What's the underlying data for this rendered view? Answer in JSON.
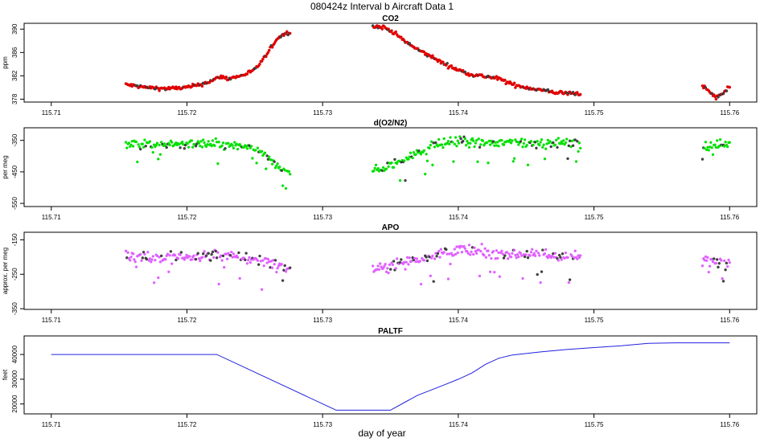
{
  "figure": {
    "title": "080424z   Interval b Aircraft Data 1",
    "xlabel": "day of year"
  },
  "chart_data": [
    {
      "type": "scatter",
      "title": "CO2",
      "ylabel": "ppm",
      "xlim": [
        115.708,
        115.762
      ],
      "ylim": [
        377.5,
        391.0
      ],
      "yticks": [
        378,
        382,
        386,
        390
      ],
      "xticks": [
        115.71,
        115.72,
        115.73,
        115.74,
        115.75,
        115.76
      ],
      "color": "#e00000",
      "series": [
        {
          "segments": [
            {
              "x": [
                115.7155,
                115.717,
                115.7185,
                115.72,
                115.721,
                115.722,
                115.7225,
                115.723,
                115.724,
                115.725,
                115.7255,
                115.726,
                115.7265,
                115.727,
                115.7276
              ],
              "y": [
                380.5,
                380.0,
                379.8,
                380.0,
                380.5,
                381.3,
                381.9,
                381.5,
                382.0,
                383.0,
                384.5,
                386.0,
                388.0,
                389.0,
                389.5
              ]
            },
            {
              "x": [
                115.7337,
                115.7345,
                115.735,
                115.7355,
                115.736,
                115.737,
                115.738,
                115.739,
                115.74,
                115.741,
                115.742,
                115.743,
                115.744,
                115.745,
                115.746,
                115.747,
                115.748,
                115.749
              ],
              "y": [
                390.5,
                390.3,
                389.8,
                389.0,
                388.0,
                386.5,
                385.3,
                384.0,
                383.0,
                382.2,
                381.9,
                381.5,
                380.5,
                380.0,
                379.6,
                379.2,
                379.0,
                379.0
              ]
            },
            {
              "x": [
                115.758,
                115.7585,
                115.759,
                115.7595,
                115.76
              ],
              "y": [
                380.2,
                379.3,
                378.2,
                379.0,
                380.2
              ]
            }
          ],
          "noise": 0.3
        }
      ]
    },
    {
      "type": "scatter",
      "title": "d(O2/N2)",
      "ylabel": "per meg",
      "xlim": [
        115.708,
        115.762
      ],
      "ylim": [
        -560,
        -310
      ],
      "yticks": [
        -350,
        -450,
        -550
      ],
      "xticks": [
        115.71,
        115.72,
        115.73,
        115.74,
        115.75,
        115.76
      ],
      "color": "#00e000",
      "series": [
        {
          "segments": [
            {
              "x": [
                115.7155,
                115.718,
                115.72,
                115.722,
                115.724,
                115.725,
                115.7255,
                115.726,
                115.7265,
                115.727,
                115.7276
              ],
              "y": [
                -358,
                -365,
                -362,
                -362,
                -370,
                -375,
                -390,
                -410,
                -430,
                -438,
                -445
              ]
            },
            {
              "x": [
                115.7337,
                115.735,
                115.736,
                115.737,
                115.738,
                115.739,
                115.74,
                115.742,
                115.744,
                115.746,
                115.748,
                115.749
              ],
              "y": [
                -450,
                -430,
                -410,
                -390,
                -370,
                -358,
                -352,
                -360,
                -355,
                -360,
                -358,
                -360
              ]
            },
            {
              "x": [
                115.758,
                115.759,
                115.76
              ],
              "y": [
                -370,
                -365,
                -362
              ]
            }
          ],
          "noise": 14
        }
      ]
    },
    {
      "type": "scatter",
      "title": "APO",
      "ylabel": "approx. per meg",
      "xlim": [
        115.708,
        115.762
      ],
      "ylim": [
        -352,
        -128
      ],
      "yticks": [
        -150,
        -250,
        -350
      ],
      "xticks": [
        115.71,
        115.72,
        115.73,
        115.74,
        115.75,
        115.76
      ],
      "color": "#e060ff",
      "series": [
        {
          "segments": [
            {
              "x": [
                115.7155,
                115.718,
                115.72,
                115.722,
                115.724,
                115.726,
                115.7276
              ],
              "y": [
                -190,
                -205,
                -200,
                -195,
                -200,
                -215,
                -235
              ]
            },
            {
              "x": [
                115.7337,
                115.736,
                115.738,
                115.74,
                115.742,
                115.744,
                115.746,
                115.748,
                115.749
              ],
              "y": [
                -235,
                -215,
                -195,
                -180,
                -185,
                -190,
                -190,
                -200,
                -200
              ]
            },
            {
              "x": [
                115.758,
                115.759,
                115.76
              ],
              "y": [
                -210,
                -215,
                -210
              ]
            }
          ],
          "noise": 16
        }
      ]
    },
    {
      "type": "line",
      "title": "PALTF",
      "ylabel": "feet",
      "xlim": [
        115.708,
        115.762
      ],
      "ylim": [
        16000,
        47500
      ],
      "yticks": [
        20000,
        30000,
        40000
      ],
      "xticks": [
        115.71,
        115.72,
        115.73,
        115.74,
        115.75,
        115.76
      ],
      "color": "#2020e0",
      "series": [
        {
          "x": [
            115.71,
            115.7222,
            115.731,
            115.735,
            115.737,
            115.739,
            115.74,
            115.741,
            115.742,
            115.743,
            115.744,
            115.746,
            115.748,
            115.75,
            115.752,
            115.754,
            115.756,
            115.76
          ],
          "y": [
            40000,
            40000,
            17500,
            17500,
            23500,
            27800,
            30000,
            32500,
            36000,
            38500,
            39800,
            41000,
            42000,
            42800,
            43500,
            44500,
            44700,
            44700
          ]
        }
      ]
    }
  ]
}
